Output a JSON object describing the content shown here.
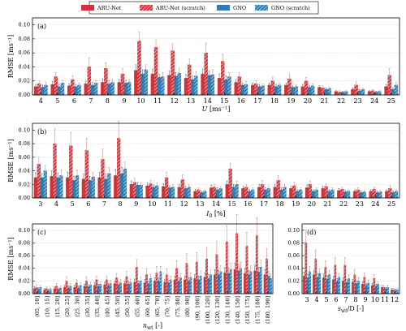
{
  "chart_data": [
    {
      "type": "bar",
      "panel_label": "(a)",
      "y_label": "RMSE [ms⁻¹]",
      "x_label": {
        "symbol": "U",
        "unit": " [ms⁻¹]"
      },
      "categories": [
        "4",
        "5",
        "6",
        "7",
        "8",
        "9",
        "10",
        "11",
        "12",
        "13",
        "14",
        "15",
        "16",
        "17",
        "18",
        "19",
        "20",
        "21",
        "22",
        "23",
        "24",
        "25"
      ],
      "ylim": [
        0,
        0.11
      ],
      "yticks": [
        {
          "value": 0,
          "label": "0.00"
        },
        {
          "value": 0.02,
          "label": "0.02"
        },
        {
          "value": 0.04,
          "label": "0.04"
        },
        {
          "value": 0.06,
          "label": "0.06"
        },
        {
          "value": 0.08,
          "label": "0.08"
        },
        {
          "value": 0.1,
          "label": "0.10"
        }
      ],
      "grid": true,
      "series": [
        {
          "name": "ARU-Net",
          "color": "#d0333b",
          "hatch": false,
          "values": [
            0.012,
            0.015,
            0.013,
            0.016,
            0.018,
            0.018,
            0.035,
            0.03,
            0.028,
            0.024,
            0.03,
            0.024,
            0.018,
            0.014,
            0.014,
            0.014,
            0.012,
            0.011,
            0.005,
            0.008,
            0.005,
            0.012
          ],
          "errors": [
            0.003,
            0.004,
            0.003,
            0.004,
            0.005,
            0.004,
            0.008,
            0.007,
            0.006,
            0.005,
            0.007,
            0.006,
            0.004,
            0.003,
            0.003,
            0.003,
            0.003,
            0.002,
            0.001,
            0.002,
            0.001,
            0.003
          ]
        },
        {
          "name": "ARU-Net (scratch)",
          "color": "#d0333b",
          "hatch": true,
          "values": [
            0.016,
            0.026,
            0.022,
            0.04,
            0.038,
            0.03,
            0.077,
            0.068,
            0.063,
            0.043,
            0.06,
            0.048,
            0.026,
            0.016,
            0.02,
            0.023,
            0.02,
            0.01,
            0.004,
            0.014,
            0.006,
            0.028
          ],
          "errors": [
            0.004,
            0.006,
            0.005,
            0.013,
            0.008,
            0.008,
            0.013,
            0.01,
            0.01,
            0.008,
            0.014,
            0.01,
            0.006,
            0.004,
            0.006,
            0.007,
            0.005,
            0.003,
            0.002,
            0.005,
            0.002,
            0.01
          ]
        },
        {
          "name": "GNO",
          "color": "#2f7cb3",
          "hatch": false,
          "values": [
            0.011,
            0.012,
            0.012,
            0.014,
            0.016,
            0.017,
            0.03,
            0.025,
            0.027,
            0.022,
            0.028,
            0.022,
            0.014,
            0.012,
            0.012,
            0.011,
            0.011,
            0.008,
            0.004,
            0.006,
            0.004,
            0.008
          ],
          "errors": [
            0.003,
            0.003,
            0.003,
            0.004,
            0.004,
            0.004,
            0.006,
            0.005,
            0.005,
            0.005,
            0.006,
            0.005,
            0.003,
            0.003,
            0.003,
            0.002,
            0.002,
            0.002,
            0.001,
            0.002,
            0.001,
            0.002
          ]
        },
        {
          "name": "GNO (scratch)",
          "color": "#2f7cb3",
          "hatch": true,
          "values": [
            0.014,
            0.017,
            0.014,
            0.017,
            0.018,
            0.018,
            0.036,
            0.026,
            0.031,
            0.027,
            0.029,
            0.026,
            0.015,
            0.013,
            0.014,
            0.012,
            0.013,
            0.009,
            0.005,
            0.008,
            0.005,
            0.014
          ],
          "errors": [
            0.004,
            0.004,
            0.003,
            0.004,
            0.004,
            0.004,
            0.007,
            0.006,
            0.007,
            0.006,
            0.007,
            0.006,
            0.004,
            0.003,
            0.003,
            0.003,
            0.003,
            0.002,
            0.001,
            0.002,
            0.001,
            0.004
          ]
        }
      ]
    },
    {
      "type": "bar",
      "panel_label": "(b)",
      "y_label": "RMSE [ms⁻¹]",
      "x_label": {
        "symbol": "I",
        "subscript": "0",
        "unit": " [%]"
      },
      "categories": [
        "3",
        "4",
        "5",
        "6",
        "7",
        "8",
        "9",
        "10",
        "11",
        "12",
        "13",
        "14",
        "15",
        "16",
        "17",
        "18",
        "19",
        "20",
        "21",
        "22",
        "23",
        "24",
        "25"
      ],
      "ylim": [
        0,
        0.11
      ],
      "yticks": [
        {
          "value": 0,
          "label": "0.00"
        },
        {
          "value": 0.02,
          "label": "0.02"
        },
        {
          "value": 0.04,
          "label": "0.04"
        },
        {
          "value": 0.06,
          "label": "0.06"
        },
        {
          "value": 0.08,
          "label": "0.08"
        },
        {
          "value": 0.1,
          "label": "0.10"
        }
      ],
      "grid": true,
      "series": [
        {
          "name": "ARU-Net",
          "color": "#d0333b",
          "hatch": false,
          "values": [
            0.03,
            0.032,
            0.03,
            0.028,
            0.03,
            0.033,
            0.02,
            0.018,
            0.017,
            0.016,
            0.01,
            0.015,
            0.02,
            0.014,
            0.016,
            0.016,
            0.014,
            0.015,
            0.014,
            0.011,
            0.01,
            0.01,
            0.01
          ],
          "errors": [
            0.007,
            0.008,
            0.008,
            0.007,
            0.008,
            0.009,
            0.005,
            0.004,
            0.004,
            0.004,
            0.003,
            0.004,
            0.005,
            0.003,
            0.004,
            0.004,
            0.003,
            0.004,
            0.003,
            0.003,
            0.002,
            0.002,
            0.002
          ]
        },
        {
          "name": "ARU-Net (scratch)",
          "color": "#d0333b",
          "hatch": true,
          "values": [
            0.05,
            0.08,
            0.077,
            0.07,
            0.057,
            0.088,
            0.023,
            0.021,
            0.03,
            0.027,
            0.012,
            0.016,
            0.043,
            0.016,
            0.02,
            0.026,
            0.018,
            0.02,
            0.017,
            0.013,
            0.012,
            0.013,
            0.014
          ],
          "errors": [
            0.01,
            0.022,
            0.02,
            0.018,
            0.015,
            0.025,
            0.006,
            0.005,
            0.008,
            0.007,
            0.003,
            0.004,
            0.008,
            0.004,
            0.006,
            0.007,
            0.005,
            0.005,
            0.004,
            0.003,
            0.003,
            0.003,
            0.004
          ]
        },
        {
          "name": "GNO",
          "color": "#2f7cb3",
          "hatch": false,
          "values": [
            0.03,
            0.03,
            0.026,
            0.026,
            0.028,
            0.036,
            0.019,
            0.016,
            0.015,
            0.014,
            0.008,
            0.012,
            0.016,
            0.01,
            0.012,
            0.012,
            0.01,
            0.01,
            0.01,
            0.009,
            0.008,
            0.008,
            0.008
          ],
          "errors": [
            0.006,
            0.007,
            0.006,
            0.006,
            0.007,
            0.009,
            0.004,
            0.003,
            0.003,
            0.003,
            0.002,
            0.003,
            0.004,
            0.002,
            0.003,
            0.003,
            0.002,
            0.002,
            0.002,
            0.002,
            0.002,
            0.002,
            0.002
          ]
        },
        {
          "name": "GNO (scratch)",
          "color": "#2f7cb3",
          "hatch": true,
          "values": [
            0.04,
            0.033,
            0.033,
            0.031,
            0.036,
            0.043,
            0.019,
            0.018,
            0.016,
            0.016,
            0.01,
            0.014,
            0.02,
            0.012,
            0.014,
            0.016,
            0.012,
            0.012,
            0.012,
            0.01,
            0.009,
            0.009,
            0.01
          ],
          "errors": [
            0.008,
            0.008,
            0.008,
            0.007,
            0.009,
            0.01,
            0.004,
            0.004,
            0.004,
            0.004,
            0.002,
            0.003,
            0.005,
            0.003,
            0.003,
            0.004,
            0.003,
            0.003,
            0.003,
            0.002,
            0.002,
            0.002,
            0.002
          ]
        }
      ]
    },
    {
      "type": "bar",
      "panel_label": "(c)",
      "y_label": "RMSE [ms⁻¹]",
      "x_label": {
        "symbol": "n",
        "subscript": "wt",
        "unit": " [-]"
      },
      "categories": [
        "(05, 10]",
        "(10, 15]",
        "(15, 20]",
        "(20, 25]",
        "(25, 30]",
        "(30, 35]",
        "(35, 40]",
        "(40, 45]",
        "(45, 50]",
        "(50, 55]",
        "(55, 60]",
        "(60, 65]",
        "(65, 70]",
        "(70, 75]",
        "(75, 80]",
        "(80, 90]",
        "(90, 100]",
        "(100, 120]",
        "(120, 130]",
        "(130, 140]",
        "(140, 150]",
        "(150, 175]",
        "(175, 180]",
        "(180, 190]"
      ],
      "ylim": [
        0,
        0.11
      ],
      "yticks": [
        {
          "value": 0,
          "label": "0.00"
        },
        {
          "value": 0.02,
          "label": "0.02"
        },
        {
          "value": 0.04,
          "label": "0.04"
        },
        {
          "value": 0.06,
          "label": "0.06"
        },
        {
          "value": 0.08,
          "label": "0.08"
        },
        {
          "value": 0.1,
          "label": "0.10"
        }
      ],
      "grid": true,
      "series": [
        {
          "name": "ARU-Net",
          "color": "#d0333b",
          "hatch": false,
          "values": [
            0.008,
            0.006,
            0.008,
            0.01,
            0.01,
            0.012,
            0.013,
            0.014,
            0.016,
            0.016,
            0.018,
            0.017,
            0.02,
            0.018,
            0.022,
            0.022,
            0.024,
            0.026,
            0.03,
            0.033,
            0.038,
            0.032,
            0.036,
            0.03
          ],
          "errors": [
            0.003,
            0.002,
            0.003,
            0.003,
            0.003,
            0.003,
            0.004,
            0.004,
            0.004,
            0.004,
            0.005,
            0.005,
            0.005,
            0.005,
            0.006,
            0.006,
            0.006,
            0.007,
            0.008,
            0.008,
            0.01,
            0.008,
            0.009,
            0.008
          ]
        },
        {
          "name": "ARU-Net (scratch)",
          "color": "#d0333b",
          "hatch": true,
          "values": [
            0.01,
            0.008,
            0.012,
            0.02,
            0.017,
            0.02,
            0.022,
            0.022,
            0.025,
            0.027,
            0.042,
            0.03,
            0.033,
            0.03,
            0.04,
            0.048,
            0.05,
            0.055,
            0.062,
            0.082,
            0.095,
            0.075,
            0.092,
            0.055
          ],
          "errors": [
            0.004,
            0.003,
            0.004,
            0.007,
            0.005,
            0.006,
            0.006,
            0.006,
            0.007,
            0.008,
            0.012,
            0.009,
            0.01,
            0.009,
            0.012,
            0.015,
            0.015,
            0.018,
            0.02,
            0.025,
            0.03,
            0.022,
            0.028,
            0.016
          ]
        },
        {
          "name": "GNO",
          "color": "#2f7cb3",
          "hatch": false,
          "values": [
            0.007,
            0.005,
            0.007,
            0.009,
            0.009,
            0.011,
            0.012,
            0.013,
            0.014,
            0.015,
            0.016,
            0.016,
            0.02,
            0.017,
            0.02,
            0.02,
            0.022,
            0.024,
            0.03,
            0.032,
            0.036,
            0.03,
            0.034,
            0.028
          ],
          "errors": [
            0.002,
            0.002,
            0.002,
            0.003,
            0.003,
            0.003,
            0.003,
            0.003,
            0.004,
            0.004,
            0.004,
            0.004,
            0.005,
            0.004,
            0.005,
            0.005,
            0.006,
            0.006,
            0.007,
            0.008,
            0.009,
            0.007,
            0.008,
            0.007
          ]
        },
        {
          "name": "GNO (scratch)",
          "color": "#2f7cb3",
          "hatch": true,
          "values": [
            0.01,
            0.007,
            0.009,
            0.012,
            0.013,
            0.014,
            0.015,
            0.016,
            0.017,
            0.018,
            0.02,
            0.024,
            0.035,
            0.022,
            0.025,
            0.026,
            0.028,
            0.03,
            0.035,
            0.038,
            0.04,
            0.035,
            0.042,
            0.024
          ],
          "errors": [
            0.003,
            0.002,
            0.003,
            0.004,
            0.004,
            0.004,
            0.004,
            0.005,
            0.005,
            0.005,
            0.006,
            0.007,
            0.008,
            0.006,
            0.007,
            0.007,
            0.008,
            0.008,
            0.009,
            0.01,
            0.01,
            0.009,
            0.011,
            0.007
          ]
        }
      ]
    },
    {
      "type": "bar",
      "panel_label": "(d)",
      "x_label": {
        "symbol": "s",
        "subscript": "wt",
        "unit": "/D [-]"
      },
      "categories": [
        "3",
        "4",
        "5",
        "6",
        "7",
        "8",
        "9",
        "10",
        "11",
        "12"
      ],
      "ylim": [
        0,
        0.11
      ],
      "yticks": [
        {
          "value": 0,
          "label": "0.00"
        },
        {
          "value": 0.02,
          "label": "0.02"
        },
        {
          "value": 0.04,
          "label": "0.04"
        },
        {
          "value": 0.06,
          "label": "0.06"
        },
        {
          "value": 0.08,
          "label": "0.08"
        },
        {
          "value": 0.1,
          "label": "0.10"
        }
      ],
      "grid": true,
      "series": [
        {
          "name": "ARU-Net",
          "color": "#d0333b",
          "hatch": false,
          "values": [
            0.028,
            0.03,
            0.025,
            0.022,
            0.02,
            0.018,
            0.015,
            0.013,
            0.01,
            0.006
          ],
          "errors": [
            0.006,
            0.007,
            0.006,
            0.005,
            0.005,
            0.004,
            0.004,
            0.003,
            0.003,
            0.002
          ]
        },
        {
          "name": "ARU-Net (scratch)",
          "color": "#d0333b",
          "hatch": true,
          "values": [
            0.08,
            0.055,
            0.042,
            0.045,
            0.045,
            0.03,
            0.026,
            0.024,
            0.01,
            0.006
          ],
          "errors": [
            0.02,
            0.014,
            0.01,
            0.012,
            0.012,
            0.008,
            0.007,
            0.006,
            0.003,
            0.002
          ]
        },
        {
          "name": "GNO",
          "color": "#2f7cb3",
          "hatch": false,
          "values": [
            0.025,
            0.026,
            0.023,
            0.02,
            0.018,
            0.016,
            0.013,
            0.012,
            0.008,
            0.005
          ],
          "errors": [
            0.005,
            0.006,
            0.005,
            0.004,
            0.004,
            0.004,
            0.003,
            0.003,
            0.002,
            0.002
          ]
        },
        {
          "name": "GNO (scratch)",
          "color": "#2f7cb3",
          "hatch": true,
          "values": [
            0.035,
            0.032,
            0.03,
            0.026,
            0.024,
            0.02,
            0.017,
            0.015,
            0.01,
            0.006
          ],
          "errors": [
            0.008,
            0.007,
            0.007,
            0.006,
            0.006,
            0.005,
            0.004,
            0.004,
            0.003,
            0.002
          ]
        }
      ]
    }
  ]
}
